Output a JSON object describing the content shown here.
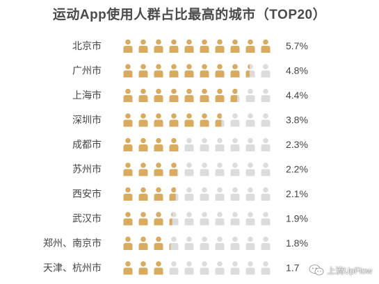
{
  "title": "运动App使用人群占比最高的城市（TOP20）",
  "colors": {
    "filled": "#d8ab5e",
    "empty": "#dcdcdc",
    "text": "#444444"
  },
  "watermark": {
    "text": "上流UpFlow",
    "icon": "wechat-icon"
  },
  "chart_data": {
    "type": "pictograph",
    "title": "运动App使用人群占比最高的城市（TOP20）",
    "icons_per_row": 10,
    "unit_value": 0.57,
    "categories": [
      "北京市",
      "广州市",
      "上海市",
      "深圳市",
      "成都市",
      "苏州市",
      "西安市",
      "武汉市",
      "郑州、南京市",
      "天津、杭州市"
    ],
    "values": [
      5.7,
      4.8,
      4.4,
      3.8,
      2.3,
      2.2,
      2.1,
      1.9,
      1.8,
      1.7
    ],
    "labels": [
      "5.7%",
      "4.8%",
      "4.4%",
      "3.8%",
      "2.3%",
      "2.2%",
      "2.1%",
      "1.9%",
      "1.8%",
      "1.7"
    ]
  }
}
